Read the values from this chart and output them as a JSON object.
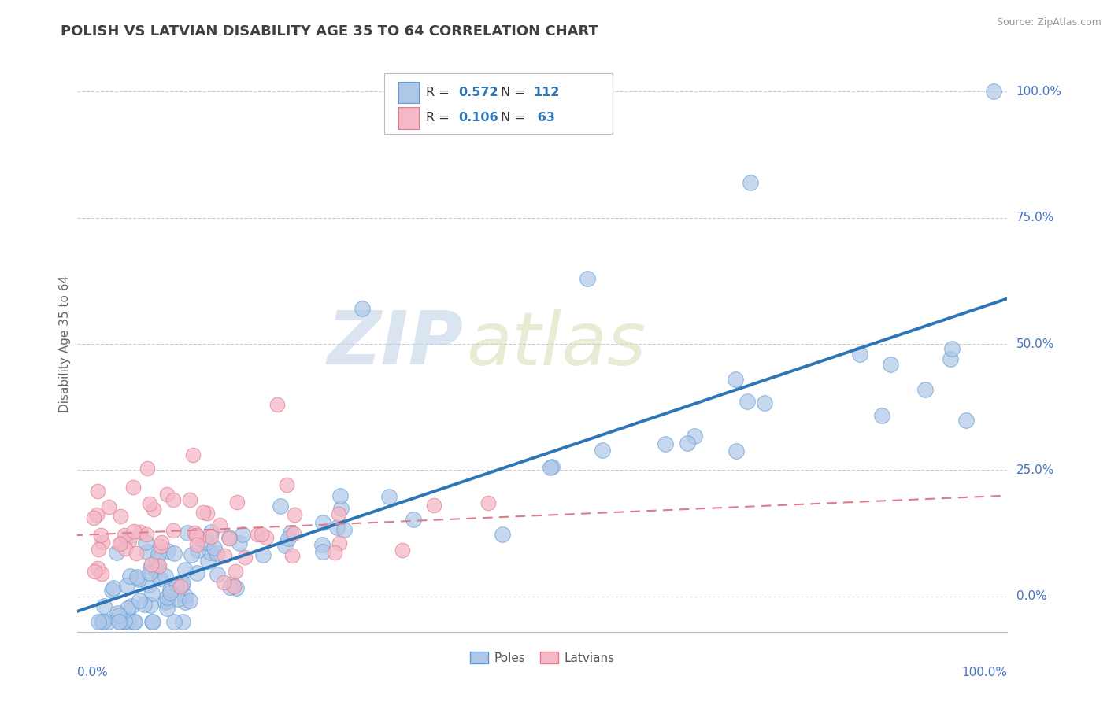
{
  "title": "POLISH VS LATVIAN DISABILITY AGE 35 TO 64 CORRELATION CHART",
  "source": "Source: ZipAtlas.com",
  "ylabel": "Disability Age 35 to 64",
  "poles_color": "#aec6e8",
  "poles_edge_color": "#5b9bd5",
  "latvians_color": "#f4b8c8",
  "latvians_edge_color": "#e07b8a",
  "poles_line_color": "#2e75b6",
  "latvians_line_color": "#e07b8a",
  "watermark_zip": "ZIP",
  "watermark_atlas": "atlas",
  "title_color": "#404040",
  "title_fontsize": 13,
  "grid_color": "#ccccdd",
  "legend_box_color": "#cccccc",
  "right_label_color": "#4472c4",
  "bottom_label_color": "#4472c4",
  "ylabel_color": "#666666",
  "source_color": "#999999",
  "poles_R": "0.572",
  "poles_N": "112",
  "latvians_R": "0.106",
  "latvians_N": " 63",
  "ytick_values": [
    0.0,
    0.25,
    0.5,
    0.75,
    1.0
  ],
  "ytick_labels": [
    "0.0%",
    "25.0%",
    "50.0%",
    "75.0%",
    "100.0%"
  ]
}
